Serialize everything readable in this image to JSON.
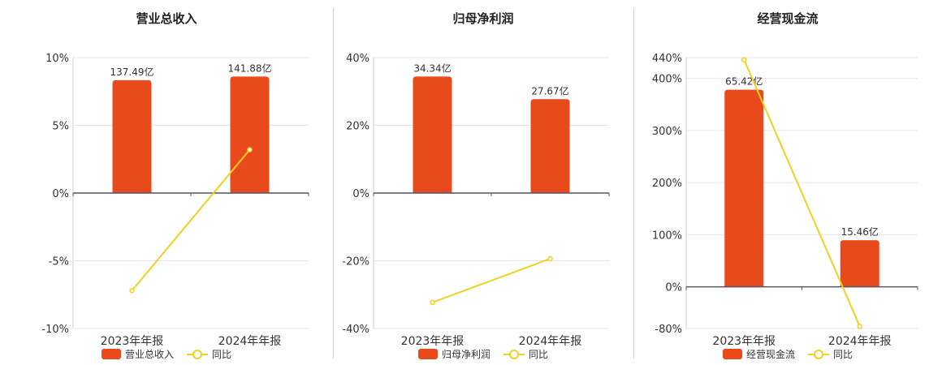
{
  "colors": {
    "bar": "#e84a1b",
    "line": "#f2d021",
    "axis": "#555566",
    "grid": "#e6e6ee",
    "text": "#333333"
  },
  "chart_data": [
    {
      "type": "bar",
      "title": "营业总收入",
      "categories": [
        "2023年年报",
        "2024年年报"
      ],
      "bar_labels": [
        "137.49亿",
        "141.88亿"
      ],
      "bar_values_billion": [
        137.49,
        141.88
      ],
      "yoy_percent": [
        -7.2,
        3.2
      ],
      "ylim": [
        -10,
        10
      ],
      "yticks": [
        "10%",
        "5%",
        "0%",
        "-5%",
        "-10%"
      ],
      "legend": [
        "营业总收入",
        "同比"
      ]
    },
    {
      "type": "bar",
      "title": "归母净利润",
      "categories": [
        "2023年年报",
        "2024年年报"
      ],
      "bar_labels": [
        "34.34亿",
        "27.67亿"
      ],
      "bar_values_billion": [
        34.34,
        27.67
      ],
      "yoy_percent": [
        -32.3,
        -19.4
      ],
      "ylim": [
        -40,
        40
      ],
      "yticks": [
        "40%",
        "20%",
        "0%",
        "-20%",
        "-40%"
      ],
      "legend": [
        "归母净利润",
        "同比"
      ]
    },
    {
      "type": "bar",
      "title": "经营现金流",
      "categories": [
        "2023年年报",
        "2024年年报"
      ],
      "bar_labels": [
        "65.42亿",
        "15.46亿"
      ],
      "bar_values_billion": [
        65.42,
        15.46
      ],
      "yoy_percent": [
        436,
        -76
      ],
      "ylim": [
        -80,
        440
      ],
      "yticks": [
        "440%",
        "400%",
        "300%",
        "200%",
        "100%",
        "0%",
        "-80%"
      ],
      "legend": [
        "经营现金流",
        "同比"
      ]
    }
  ]
}
